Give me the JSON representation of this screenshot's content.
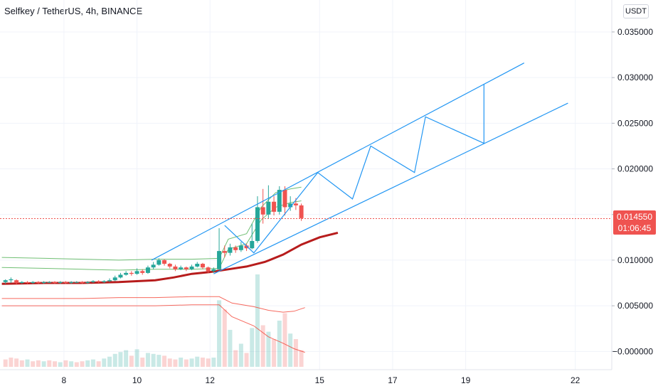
{
  "header": {
    "title": "Selfkey / TetherUS, 4h, BINANCE",
    "currency_button": "USDT"
  },
  "price_tag": {
    "price": "0.014550",
    "countdown": "01:06:45",
    "color": "#ef5350"
  },
  "colors": {
    "up": "#26a69a",
    "down": "#ef5350",
    "channel": "#2196f3",
    "ma": "#b71c1c",
    "upper_band": "#4caf50",
    "lower_band": "#f44336",
    "grid": "#f0f3fa"
  },
  "chart_data": {
    "type": "candlestick",
    "x_ticks": [
      "8",
      "10",
      "12",
      "15",
      "17",
      "19",
      "22"
    ],
    "y_ticks": [
      "0.035000",
      "0.030000",
      "0.025000",
      "0.020000",
      "0.015000",
      "0.010000",
      "0.005000",
      "−0.000000"
    ],
    "y_range": [
      -0.002,
      0.0385
    ],
    "x_range": [
      6.25,
      23
    ],
    "current_price": 0.01455,
    "candles": [
      [
        6.4,
        0.0076,
        0.0078,
        0.0074,
        0.0079
      ],
      [
        6.55,
        0.0078,
        0.0079,
        0.0075,
        0.0081
      ],
      [
        6.7,
        0.0078,
        0.0075,
        0.0073,
        0.0079
      ],
      [
        6.85,
        0.0075,
        0.0076,
        0.0074,
        0.0077
      ],
      [
        7.0,
        0.0076,
        0.0075,
        0.0074,
        0.0077
      ],
      [
        7.15,
        0.0075,
        0.0076,
        0.0074,
        0.0077
      ],
      [
        7.3,
        0.0076,
        0.0075,
        0.0074,
        0.0077
      ],
      [
        7.45,
        0.0075,
        0.0076,
        0.0074,
        0.0077
      ],
      [
        7.6,
        0.0076,
        0.0076,
        0.0075,
        0.0077
      ],
      [
        7.75,
        0.0076,
        0.0075,
        0.0074,
        0.0077
      ],
      [
        7.9,
        0.0075,
        0.0076,
        0.0074,
        0.0077
      ],
      [
        8.05,
        0.0076,
        0.0075,
        0.0074,
        0.0077
      ],
      [
        8.2,
        0.0075,
        0.0076,
        0.0074,
        0.0077
      ],
      [
        8.35,
        0.0076,
        0.0076,
        0.0075,
        0.0077
      ],
      [
        8.5,
        0.0076,
        0.0075,
        0.0074,
        0.0077
      ],
      [
        8.65,
        0.0075,
        0.0076,
        0.0074,
        0.0077
      ],
      [
        8.8,
        0.0076,
        0.0077,
        0.0075,
        0.0078
      ],
      [
        8.95,
        0.0077,
        0.0076,
        0.0075,
        0.0078
      ],
      [
        9.1,
        0.0076,
        0.0077,
        0.0075,
        0.0078
      ],
      [
        9.25,
        0.0077,
        0.0078,
        0.0076,
        0.008
      ],
      [
        9.4,
        0.0078,
        0.0081,
        0.0077,
        0.0083
      ],
      [
        9.55,
        0.0081,
        0.0084,
        0.008,
        0.0086
      ],
      [
        9.7,
        0.0084,
        0.0086,
        0.0083,
        0.0088
      ],
      [
        9.85,
        0.0086,
        0.0085,
        0.0083,
        0.0088
      ],
      [
        10.0,
        0.0085,
        0.0088,
        0.0084,
        0.0091
      ],
      [
        10.15,
        0.0088,
        0.0086,
        0.0084,
        0.009
      ],
      [
        10.3,
        0.0086,
        0.0092,
        0.0085,
        0.0094
      ],
      [
        10.45,
        0.0092,
        0.0095,
        0.009,
        0.0098
      ],
      [
        10.6,
        0.0095,
        0.01,
        0.0094,
        0.0102
      ],
      [
        10.75,
        0.01,
        0.0096,
        0.0094,
        0.0101
      ],
      [
        10.9,
        0.0096,
        0.0093,
        0.0091,
        0.0097
      ],
      [
        11.05,
        0.0093,
        0.009,
        0.0088,
        0.0095
      ],
      [
        11.2,
        0.009,
        0.0092,
        0.0089,
        0.0094
      ],
      [
        11.35,
        0.0092,
        0.009,
        0.0088,
        0.0093
      ],
      [
        11.5,
        0.009,
        0.0093,
        0.0089,
        0.0095
      ],
      [
        11.65,
        0.0093,
        0.0096,
        0.0092,
        0.0098
      ],
      [
        11.8,
        0.0096,
        0.0092,
        0.009,
        0.0097
      ],
      [
        11.95,
        0.0092,
        0.0088,
        0.0086,
        0.0093
      ],
      [
        12.1,
        0.0088,
        0.009,
        0.0086,
        0.0092
      ],
      [
        12.25,
        0.009,
        0.011,
        0.0089,
        0.0135
      ],
      [
        12.4,
        0.011,
        0.0108,
        0.0103,
        0.0116
      ],
      [
        12.55,
        0.0108,
        0.0114,
        0.0105,
        0.0118
      ],
      [
        12.7,
        0.0114,
        0.0111,
        0.0108,
        0.0116
      ],
      [
        12.85,
        0.0111,
        0.0116,
        0.0109,
        0.012
      ],
      [
        13.0,
        0.0116,
        0.0113,
        0.011,
        0.0118
      ],
      [
        13.15,
        0.0113,
        0.0121,
        0.0112,
        0.014
      ],
      [
        13.3,
        0.0121,
        0.0158,
        0.0119,
        0.017
      ],
      [
        13.45,
        0.0158,
        0.015,
        0.014,
        0.0178
      ],
      [
        13.6,
        0.015,
        0.0164,
        0.0146,
        0.0182
      ],
      [
        13.75,
        0.0164,
        0.0153,
        0.0149,
        0.017
      ],
      [
        13.9,
        0.0153,
        0.0177,
        0.015,
        0.0181
      ],
      [
        14.05,
        0.0177,
        0.0158,
        0.0149,
        0.0181
      ],
      [
        14.2,
        0.0158,
        0.0162,
        0.0154,
        0.017
      ],
      [
        14.35,
        0.0162,
        0.016,
        0.0155,
        0.0168
      ],
      [
        14.5,
        0.016,
        0.0146,
        0.0143,
        0.0162
      ]
    ],
    "ma": [
      [
        6.3,
        0.0074
      ],
      [
        7.5,
        0.0075
      ],
      [
        8.5,
        0.0075
      ],
      [
        9.5,
        0.0076
      ],
      [
        10.5,
        0.0078
      ],
      [
        11.0,
        0.0081
      ],
      [
        11.5,
        0.0085
      ],
      [
        12.0,
        0.0087
      ],
      [
        12.5,
        0.009
      ],
      [
        13.0,
        0.0093
      ],
      [
        13.5,
        0.0098
      ],
      [
        14.0,
        0.0106
      ],
      [
        14.5,
        0.0117
      ],
      [
        15.0,
        0.0125
      ],
      [
        15.5,
        0.013
      ]
    ],
    "upper_band_outer": [
      [
        6.3,
        0.0103
      ],
      [
        7.5,
        0.0102
      ],
      [
        8.5,
        0.0101
      ],
      [
        9.5,
        0.01
      ],
      [
        10.5,
        0.0101
      ],
      [
        11.5,
        0.0101
      ],
      [
        12.25,
        0.0102
      ],
      [
        12.5,
        0.0123
      ],
      [
        13.0,
        0.0129
      ],
      [
        13.4,
        0.0158
      ],
      [
        13.8,
        0.0174
      ],
      [
        14.2,
        0.0178
      ],
      [
        14.5,
        0.018
      ]
    ],
    "upper_band_inner": [
      [
        6.3,
        0.0092
      ],
      [
        7.5,
        0.0091
      ],
      [
        8.5,
        0.009
      ],
      [
        9.5,
        0.0089
      ],
      [
        10.5,
        0.009
      ],
      [
        11.5,
        0.009
      ],
      [
        12.25,
        0.0091
      ],
      [
        12.5,
        0.0112
      ],
      [
        13.0,
        0.0118
      ],
      [
        13.4,
        0.0144
      ],
      [
        13.8,
        0.0158
      ],
      [
        14.2,
        0.0163
      ],
      [
        14.5,
        0.0165
      ]
    ],
    "lower_band_inner": [
      [
        6.3,
        0.0058
      ],
      [
        7.5,
        0.0058
      ],
      [
        8.5,
        0.0058
      ],
      [
        9.5,
        0.0059
      ],
      [
        10.5,
        0.0059
      ],
      [
        11.5,
        0.006
      ],
      [
        12.25,
        0.006
      ],
      [
        12.6,
        0.0053
      ],
      [
        13.2,
        0.0049
      ],
      [
        13.6,
        0.0045
      ],
      [
        14.0,
        0.0043
      ],
      [
        14.3,
        0.0044
      ],
      [
        14.6,
        0.0048
      ]
    ],
    "lower_band_outer": [
      [
        6.3,
        0.005
      ],
      [
        7.5,
        0.005
      ],
      [
        8.5,
        0.005
      ],
      [
        9.5,
        0.005
      ],
      [
        10.5,
        0.005
      ],
      [
        11.5,
        0.0051
      ],
      [
        12.25,
        0.0051
      ],
      [
        12.6,
        0.0038
      ],
      [
        13.2,
        0.0028
      ],
      [
        13.6,
        0.0016
      ],
      [
        14.0,
        0.0009
      ],
      [
        14.3,
        0.0003
      ],
      [
        14.6,
        -0.0001
      ]
    ],
    "channel": {
      "upper": [
        [
          10.4,
          0.01
        ],
        [
          20.6,
          0.0316
        ]
      ],
      "lower": [
        [
          12.1,
          0.0085
        ],
        [
          21.8,
          0.0272
        ]
      ],
      "zigzag": [
        [
          12.4,
          0.0138
        ],
        [
          13.2,
          0.0108
        ],
        [
          14.95,
          0.0196
        ],
        [
          15.9,
          0.0167
        ],
        [
          16.4,
          0.0225
        ],
        [
          17.6,
          0.0196
        ],
        [
          17.9,
          0.0257
        ],
        [
          19.5,
          0.0228
        ],
        [
          19.5,
          0.0293
        ]
      ]
    },
    "volume": [
      [
        6.4,
        0.08,
        0
      ],
      [
        6.55,
        0.1,
        0
      ],
      [
        6.7,
        0.09,
        0
      ],
      [
        6.85,
        0.07,
        0
      ],
      [
        7.0,
        0.08,
        1
      ],
      [
        7.15,
        0.06,
        0
      ],
      [
        7.3,
        0.07,
        0
      ],
      [
        7.45,
        0.06,
        1
      ],
      [
        7.6,
        0.07,
        0
      ],
      [
        7.75,
        0.06,
        0
      ],
      [
        7.9,
        0.05,
        1
      ],
      [
        8.05,
        0.07,
        0
      ],
      [
        8.2,
        0.06,
        1
      ],
      [
        8.35,
        0.05,
        0
      ],
      [
        8.5,
        0.06,
        0
      ],
      [
        8.65,
        0.07,
        1
      ],
      [
        8.8,
        0.08,
        1
      ],
      [
        8.95,
        0.06,
        0
      ],
      [
        9.1,
        0.09,
        1
      ],
      [
        9.25,
        0.11,
        1
      ],
      [
        9.4,
        0.14,
        1
      ],
      [
        9.55,
        0.16,
        1
      ],
      [
        9.7,
        0.18,
        1
      ],
      [
        9.85,
        0.12,
        0
      ],
      [
        10.0,
        0.19,
        1
      ],
      [
        10.15,
        0.1,
        0
      ],
      [
        10.3,
        0.15,
        1
      ],
      [
        10.45,
        0.14,
        1
      ],
      [
        10.6,
        0.13,
        1
      ],
      [
        10.75,
        0.12,
        0
      ],
      [
        10.9,
        0.09,
        0
      ],
      [
        11.05,
        0.08,
        0
      ],
      [
        11.2,
        0.1,
        1
      ],
      [
        11.35,
        0.08,
        0
      ],
      [
        11.5,
        0.09,
        1
      ],
      [
        11.65,
        0.11,
        1
      ],
      [
        11.8,
        0.1,
        0
      ],
      [
        11.95,
        0.09,
        0
      ],
      [
        12.1,
        0.1,
        1
      ],
      [
        12.25,
        0.72,
        1
      ],
      [
        12.4,
        0.62,
        0
      ],
      [
        12.55,
        0.4,
        1
      ],
      [
        12.7,
        0.18,
        0
      ],
      [
        12.85,
        0.25,
        1
      ],
      [
        13.0,
        0.15,
        0
      ],
      [
        13.15,
        0.42,
        1
      ],
      [
        13.3,
        1.0,
        1
      ],
      [
        13.45,
        0.45,
        0
      ],
      [
        13.6,
        0.38,
        1
      ],
      [
        13.75,
        0.3,
        0
      ],
      [
        13.9,
        0.5,
        1
      ],
      [
        14.05,
        0.58,
        0
      ],
      [
        14.2,
        0.36,
        1
      ],
      [
        14.35,
        0.3,
        0
      ],
      [
        14.5,
        0.18,
        0
      ]
    ]
  }
}
